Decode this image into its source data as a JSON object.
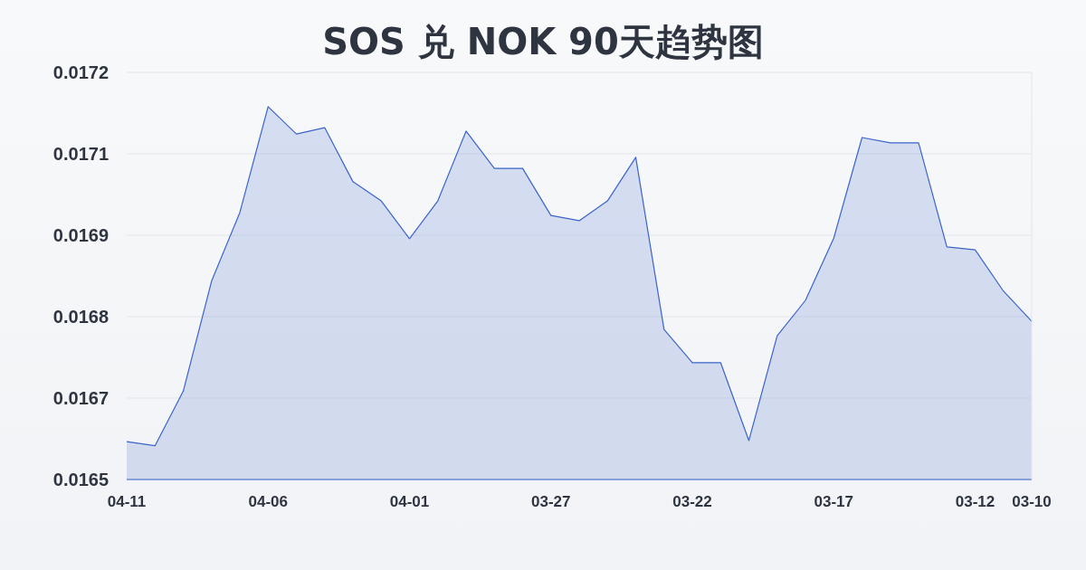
{
  "chart_data": {
    "type": "area",
    "title": "SOS 兑 NOK 90天趋势图",
    "categories": [
      "04-11",
      null,
      null,
      null,
      null,
      "04-06",
      null,
      null,
      null,
      null,
      "04-01",
      null,
      null,
      null,
      null,
      "03-27",
      null,
      null,
      null,
      null,
      "03-22",
      null,
      null,
      null,
      null,
      "03-17",
      null,
      null,
      null,
      null,
      "03-12",
      null,
      "03-10"
    ],
    "values": [
      0.016585,
      0.016578,
      0.016672,
      0.016861,
      0.016979,
      0.017161,
      0.017114,
      0.017125,
      0.017032,
      0.016999,
      0.016934,
      0.016999,
      0.017119,
      0.017055,
      0.017055,
      0.016974,
      0.016965,
      0.016999,
      0.017074,
      0.016778,
      0.016721,
      0.016721,
      0.016587,
      0.016767,
      0.016828,
      0.016935,
      0.017108,
      0.017099,
      0.017099,
      0.01692,
      0.016915,
      0.016844,
      0.016792
    ],
    "color": "#3b64c8",
    "ylim": [
      0.01652,
      0.01722
    ],
    "yticks": [
      {
        "value": 0.01652,
        "label": "0.0165"
      },
      {
        "value": 0.01666,
        "label": "0.0167"
      },
      {
        "value": 0.0168,
        "label": "0.0168"
      },
      {
        "value": 0.01694,
        "label": "0.0169"
      },
      {
        "value": 0.01708,
        "label": "0.0171"
      },
      {
        "value": 0.01722,
        "label": "0.0172"
      }
    ],
    "grid": "y"
  }
}
